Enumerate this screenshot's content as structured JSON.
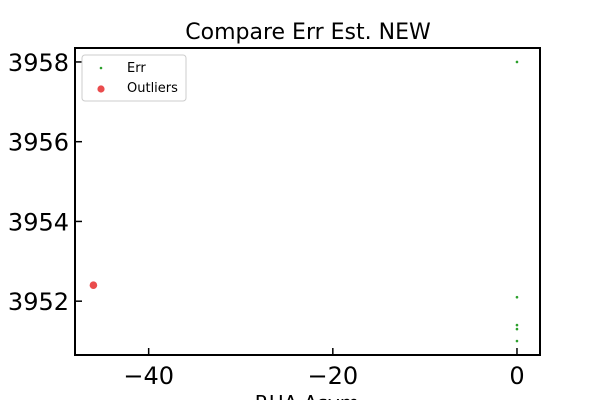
{
  "chart_data": {
    "type": "scatter",
    "title": "Compare Err Est. NEW",
    "xlabel": "RHA Asym",
    "ylabel": "",
    "xlim": [
      -48,
      2.5
    ],
    "ylim": [
      3950.65,
      3958.35
    ],
    "x_ticks": [
      -40,
      -20,
      0
    ],
    "x_tick_labels": [
      "−40",
      "−20",
      "0"
    ],
    "y_ticks": [
      3952,
      3954,
      3956,
      3958
    ],
    "y_tick_labels": [
      "3952",
      "3954",
      "3956",
      "3958"
    ],
    "grid": false,
    "legend_position": "top-left",
    "series": [
      {
        "name": "Err",
        "color": "#2ca02c",
        "marker": "small-dot",
        "points": [
          {
            "x": 0,
            "y": 3958.0
          },
          {
            "x": 0,
            "y": 3952.1
          },
          {
            "x": 0,
            "y": 3951.4
          },
          {
            "x": 0,
            "y": 3951.3
          },
          {
            "x": 0,
            "y": 3951.0
          }
        ]
      },
      {
        "name": "Outliers",
        "color": "#e8393a",
        "marker": "circle",
        "points": [
          {
            "x": -46,
            "y": 3952.4
          }
        ]
      }
    ]
  }
}
